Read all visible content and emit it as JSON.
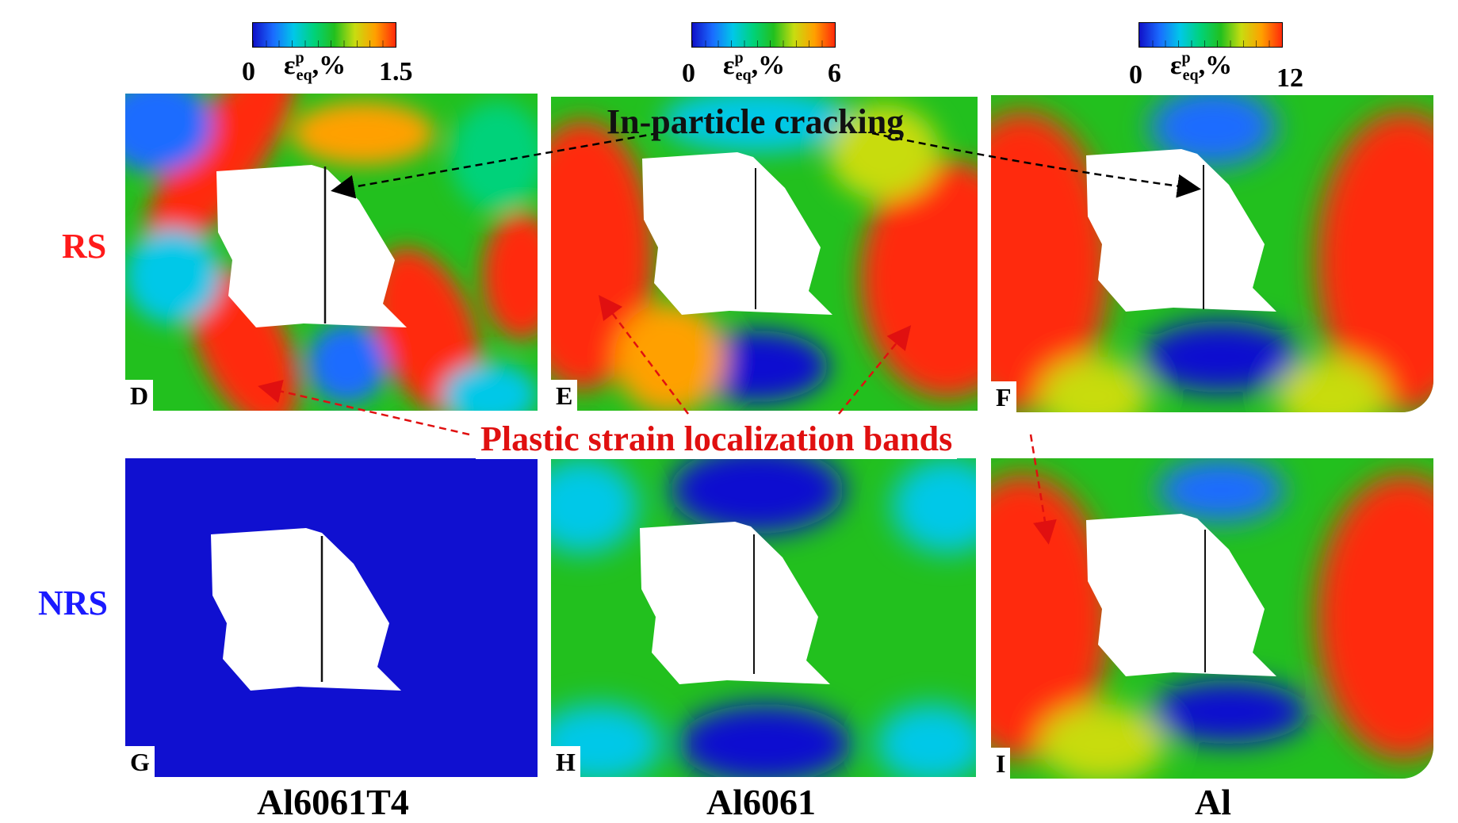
{
  "colorbars": [
    {
      "min": "0",
      "max": "1.5",
      "symbol": "ε",
      "sup": "p",
      "sub": "eq",
      "unit": ",%"
    },
    {
      "min": "0",
      "max": "6",
      "symbol": "ε",
      "sup": "p",
      "sub": "eq",
      "unit": ",%"
    },
    {
      "min": "0",
      "max": "12",
      "symbol": "ε",
      "sup": "p",
      "sub": "eq",
      "unit": ",%"
    }
  ],
  "row_labels": {
    "top": "RS",
    "bottom": "NRS"
  },
  "panel_letters": [
    "D",
    "E",
    "F",
    "G",
    "H",
    "I"
  ],
  "column_labels": [
    "Al6061T4",
    "Al6061",
    "Al"
  ],
  "annotations": {
    "cracking": "In-particle cracking",
    "bands": "Plastic strain localization bands"
  },
  "colors": {
    "rs_label": "#ff1a1a",
    "nrs_label": "#1a1aff",
    "band_arrow": "#e01010",
    "crack_arrow": "#000000"
  },
  "colormap": [
    "#1010d0",
    "#1a6cff",
    "#00c8e8",
    "#00d27a",
    "#22c01e",
    "#c8dc10",
    "#ffa000",
    "#ff2a0a"
  ]
}
